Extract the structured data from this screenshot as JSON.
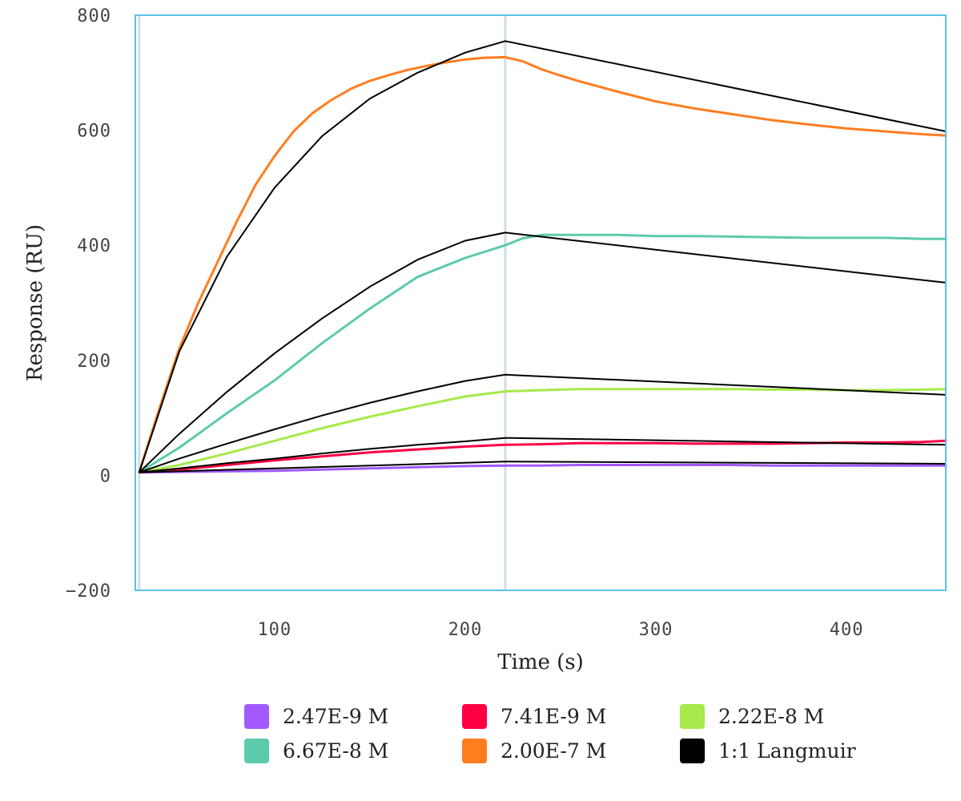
{
  "chart_data": {
    "type": "line",
    "title": "",
    "xlabel": "Time (s)",
    "ylabel": "Response (RU)",
    "xlim": [
      27,
      452
    ],
    "ylim": [
      -200,
      800
    ],
    "x_ticks": [
      100,
      200,
      300,
      400
    ],
    "y_ticks": [
      -200,
      0,
      200,
      400,
      600,
      800
    ],
    "x_tick_labels": [
      "100",
      "200",
      "300",
      "400"
    ],
    "y_tick_labels": [
      "−200",
      "0",
      "200",
      "400",
      "600",
      "800"
    ],
    "grid": false,
    "legend_position": "bottom",
    "vertical_markers": [
      29,
      221
    ],
    "colors": {
      "frame": "#5bc0eb",
      "marker_line": "#cfdde6",
      "fit": "#000000"
    },
    "series": [
      {
        "name": "2.47E-9 M",
        "color": "#a259ff",
        "x": [
          29,
          50,
          75,
          100,
          125,
          150,
          175,
          200,
          221,
          240,
          260,
          280,
          300,
          320,
          340,
          360,
          380,
          400,
          420,
          440,
          452
        ],
        "values": [
          5,
          6,
          7,
          8,
          10,
          12,
          14,
          16,
          17,
          17,
          18,
          18,
          18,
          18,
          18,
          17,
          17,
          17,
          17,
          17,
          17
        ]
      },
      {
        "name": "7.41E-9 M",
        "color": "#ff0044",
        "x": [
          29,
          50,
          75,
          100,
          125,
          150,
          175,
          200,
          221,
          240,
          260,
          280,
          300,
          320,
          340,
          360,
          380,
          400,
          420,
          440,
          452
        ],
        "values": [
          5,
          10,
          18,
          26,
          33,
          40,
          45,
          50,
          53,
          54,
          56,
          56,
          56,
          55,
          55,
          55,
          56,
          57,
          57,
          58,
          60
        ]
      },
      {
        "name": "2.22E-8 M",
        "color": "#a7e94a",
        "x": [
          29,
          50,
          75,
          100,
          125,
          150,
          175,
          200,
          221,
          240,
          260,
          280,
          300,
          320,
          340,
          360,
          380,
          400,
          420,
          440,
          452
        ],
        "values": [
          5,
          18,
          38,
          60,
          82,
          102,
          120,
          137,
          146,
          148,
          150,
          150,
          150,
          150,
          150,
          149,
          149,
          148,
          148,
          149,
          150
        ]
      },
      {
        "name": "6.67E-8 M",
        "color": "#5ccbaa",
        "x": [
          29,
          50,
          75,
          100,
          125,
          150,
          175,
          200,
          221,
          230,
          240,
          260,
          280,
          300,
          320,
          340,
          360,
          380,
          400,
          420,
          440,
          452
        ],
        "values": [
          5,
          48,
          108,
          165,
          230,
          290,
          345,
          378,
          400,
          412,
          418,
          418,
          418,
          416,
          416,
          415,
          414,
          413,
          413,
          413,
          411,
          411
        ]
      },
      {
        "name": "2.00E-7 M",
        "color": "#ff7d1f",
        "x": [
          29,
          40,
          50,
          60,
          70,
          80,
          90,
          100,
          110,
          120,
          130,
          140,
          150,
          160,
          170,
          180,
          190,
          200,
          210,
          221,
          230,
          240,
          250,
          260,
          280,
          300,
          320,
          340,
          360,
          380,
          400,
          420,
          440,
          452
        ],
        "values": [
          5,
          120,
          220,
          300,
          370,
          440,
          505,
          555,
          598,
          630,
          653,
          672,
          686,
          696,
          705,
          712,
          718,
          723,
          726,
          727,
          720,
          706,
          695,
          685,
          667,
          650,
          638,
          628,
          618,
          610,
          603,
          598,
          593,
          591
        ]
      },
      {
        "name": "1:1 Langmuir",
        "color": "#000000",
        "is_fit": true,
        "curves": [
          {
            "x": [
              29,
              221,
              452
            ],
            "values": [
              5,
              24,
              20
            ]
          },
          {
            "x": [
              29,
              50,
              75,
              100,
              125,
              150,
              175,
              200,
              221,
              452
            ],
            "values": [
              5,
              12,
              21,
              29,
              38,
              46,
              53,
              59,
              65,
              53
            ]
          },
          {
            "x": [
              29,
              50,
              75,
              100,
              125,
              150,
              175,
              200,
              221,
              452
            ],
            "values": [
              5,
              29,
              55,
              80,
              104,
              126,
              146,
              164,
              175,
              140
            ]
          },
          {
            "x": [
              29,
              50,
              75,
              100,
              125,
              150,
              175,
              200,
              221,
              452
            ],
            "values": [
              5,
              72,
              145,
              212,
              273,
              328,
              375,
              408,
              422,
              335
            ]
          },
          {
            "x": [
              29,
              50,
              75,
              100,
              125,
              150,
              175,
              200,
              221,
              452
            ],
            "values": [
              5,
              215,
              380,
              500,
              590,
              655,
              700,
              735,
              755,
              598
            ]
          }
        ]
      }
    ]
  }
}
